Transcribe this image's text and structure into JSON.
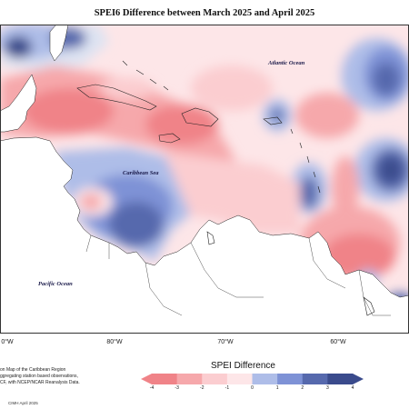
{
  "title": "SPEI6 Difference between March 2025 and April 2025",
  "labels": {
    "atlantic": "Atlantic Ocean",
    "caribbean": "Caribbean Sea",
    "pacific": "Pacific Ocean"
  },
  "longitudes": [
    "0°W",
    "80°W",
    "70°W",
    "60°W"
  ],
  "footnotes": [
    "on Map of the Caribbean Region",
    "ggregating station based observations,",
    "CF, with NCEP/NCAR Reanalysis Data."
  ],
  "credit": "CIMH April 2025",
  "legend": {
    "title": "SPEI Difference",
    "ticks": [
      "-4",
      "-3",
      "-2",
      "-1",
      "0",
      "1",
      "2",
      "3",
      "4"
    ],
    "colors": [
      "#f08388",
      "#f6a8ab",
      "#fbcdd0",
      "#fde6e8",
      "#dde3f2",
      "#aebde8",
      "#7e92d6",
      "#5669ad",
      "#3a4b8c"
    ]
  }
}
